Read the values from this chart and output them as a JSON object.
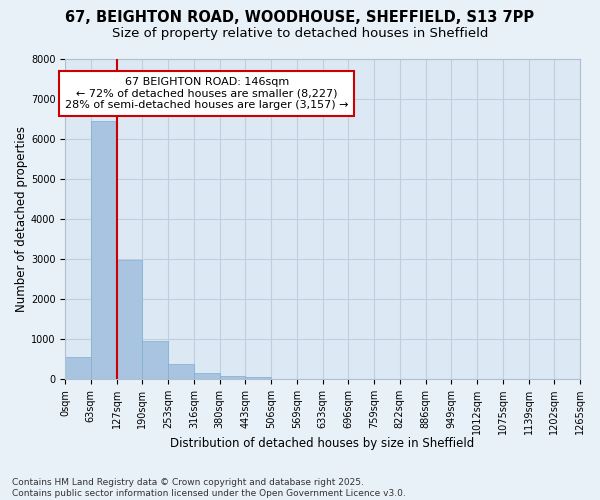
{
  "title_line1": "67, BEIGHTON ROAD, WOODHOUSE, SHEFFIELD, S13 7PP",
  "title_line2": "Size of property relative to detached houses in Sheffield",
  "xlabel": "Distribution of detached houses by size in Sheffield",
  "ylabel": "Number of detached properties",
  "bar_values": [
    560,
    6450,
    2980,
    960,
    370,
    155,
    80,
    50,
    0,
    0,
    0,
    0,
    0,
    0,
    0,
    0,
    0,
    0,
    0,
    0
  ],
  "bin_edge_labels": [
    "0sqm",
    "63sqm",
    "127sqm",
    "190sqm",
    "253sqm",
    "316sqm",
    "380sqm",
    "443sqm",
    "506sqm",
    "569sqm",
    "633sqm",
    "696sqm",
    "759sqm",
    "822sqm",
    "886sqm",
    "949sqm",
    "1012sqm",
    "1075sqm",
    "1139sqm",
    "1202sqm",
    "1265sqm"
  ],
  "bar_color": "#a8c4e0",
  "bar_edge_color": "#7faecf",
  "grid_color": "#c0cfe0",
  "background_color": "#dce8f4",
  "fig_background": "#e8f0f8",
  "vline_color": "#cc0000",
  "vline_position": 1.5,
  "annotation_text": "67 BEIGHTON ROAD: 146sqm\n← 72% of detached houses are smaller (8,227)\n28% of semi-detached houses are larger (3,157) →",
  "annotation_box_facecolor": "#ffffff",
  "annotation_box_edgecolor": "#cc0000",
  "footnote_line1": "Contains HM Land Registry data © Crown copyright and database right 2025.",
  "footnote_line2": "Contains public sector information licensed under the Open Government Licence v3.0.",
  "ylim": [
    0,
    8000
  ],
  "yticks": [
    0,
    1000,
    2000,
    3000,
    4000,
    5000,
    6000,
    7000,
    8000
  ],
  "title_fontsize": 10.5,
  "subtitle_fontsize": 9.5,
  "axis_label_fontsize": 8.5,
  "tick_fontsize": 7,
  "annotation_fontsize": 8,
  "footnote_fontsize": 6.5
}
